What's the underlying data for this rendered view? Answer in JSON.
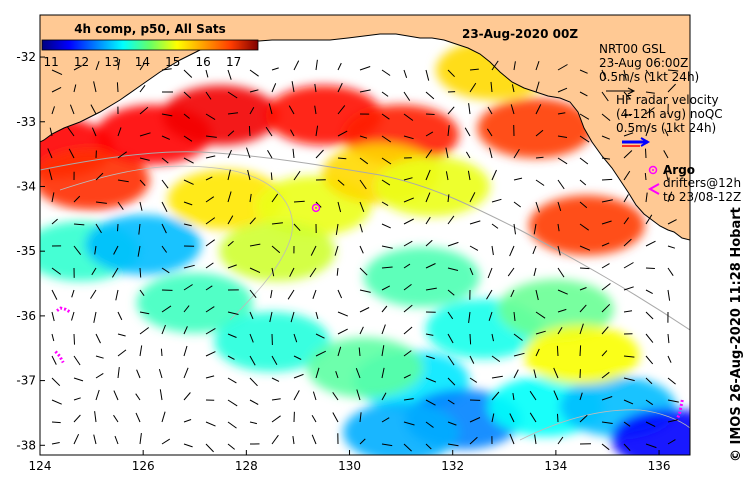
{
  "chart_data": {
    "type": "heatmap",
    "title": "23-Aug-2020 00Z",
    "colorbar": {
      "title": "4h comp, p50, All Sats",
      "tick_labels": [
        "11",
        "12",
        "13",
        "14",
        "15",
        "16",
        "17"
      ],
      "range": [
        10.7,
        17.8
      ],
      "colormap": "jet"
    },
    "x_ticks": [
      "124",
      "126",
      "128",
      "130",
      "132",
      "134",
      "136"
    ],
    "y_ticks": [
      "-32",
      "-33",
      "-34",
      "-35",
      "-36",
      "-37",
      "-38"
    ],
    "xlim": [
      124,
      136.6
    ],
    "ylim": [
      -38.15,
      -31.35
    ],
    "grid": false,
    "legend": {
      "gsl_line1": "NRT00 GSL",
      "gsl_line2": "23-Aug 06:00Z",
      "gsl_line3": "0.5m/s (1kt 24h)",
      "hf_line1": "HF radar velocity",
      "hf_line2": "(4-12h avg) noQC",
      "hf_line3": "0.5m/s (1kt 24h)",
      "argo_label": "Argo",
      "drifter_line1": "drifters@12h",
      "drifter_line2": "to 23/08-12Z"
    },
    "credit": "© IMOS 26-Aug-2020 11:28 Hobart",
    "sst_patches": [
      {
        "lon": 124.3,
        "lat": -33.4,
        "value": 16.9
      },
      {
        "lon": 125.0,
        "lat": -33.9,
        "value": 16.6
      },
      {
        "lon": 126.2,
        "lat": -33.2,
        "value": 16.9
      },
      {
        "lon": 127.5,
        "lat": -32.9,
        "value": 17.0
      },
      {
        "lon": 129.5,
        "lat": -32.9,
        "value": 16.8
      },
      {
        "lon": 131.0,
        "lat": -33.2,
        "value": 16.7
      },
      {
        "lon": 132.8,
        "lat": -32.2,
        "value": 15.4
      },
      {
        "lon": 133.6,
        "lat": -33.1,
        "value": 16.5
      },
      {
        "lon": 134.6,
        "lat": -34.6,
        "value": 16.5
      },
      {
        "lon": 127.6,
        "lat": -34.2,
        "value": 15.3
      },
      {
        "lon": 129.3,
        "lat": -34.3,
        "value": 15.0
      },
      {
        "lon": 128.6,
        "lat": -35.0,
        "value": 14.8
      },
      {
        "lon": 130.6,
        "lat": -33.8,
        "value": 15.4
      },
      {
        "lon": 131.6,
        "lat": -34.0,
        "value": 15.0
      },
      {
        "lon": 124.8,
        "lat": -35.0,
        "value": 13.7
      },
      {
        "lon": 126.0,
        "lat": -34.9,
        "value": 12.9
      },
      {
        "lon": 127.0,
        "lat": -35.8,
        "value": 13.8
      },
      {
        "lon": 128.5,
        "lat": -36.4,
        "value": 13.6
      },
      {
        "lon": 131.4,
        "lat": -35.4,
        "value": 13.9
      },
      {
        "lon": 132.6,
        "lat": -36.2,
        "value": 13.5
      },
      {
        "lon": 134.0,
        "lat": -35.9,
        "value": 14.1
      },
      {
        "lon": 131.2,
        "lat": -37.0,
        "value": 13.2
      },
      {
        "lon": 132.2,
        "lat": -37.6,
        "value": 12.5
      },
      {
        "lon": 131.0,
        "lat": -37.8,
        "value": 12.8
      },
      {
        "lon": 133.8,
        "lat": -37.4,
        "value": 13.4
      },
      {
        "lon": 135.2,
        "lat": -37.4,
        "value": 12.9
      },
      {
        "lon": 136.2,
        "lat": -37.9,
        "value": 11.6
      },
      {
        "lon": 134.5,
        "lat": -36.6,
        "value": 15.1
      },
      {
        "lon": 130.3,
        "lat": -36.8,
        "value": 14.0
      }
    ],
    "argo_floats": [
      {
        "lon": 129.35,
        "lat": -34.33
      }
    ],
    "drifter_tracks": [
      [
        [
          124.33,
          -35.92
        ],
        [
          124.4,
          -35.88
        ],
        [
          124.5,
          -35.9
        ],
        [
          124.6,
          -35.95
        ]
      ],
      [
        [
          124.3,
          -36.55
        ],
        [
          124.38,
          -36.62
        ],
        [
          124.45,
          -36.72
        ]
      ],
      [
        [
          136.45,
          -37.3
        ],
        [
          136.4,
          -37.5
        ],
        [
          136.35,
          -37.6
        ]
      ]
    ]
  }
}
